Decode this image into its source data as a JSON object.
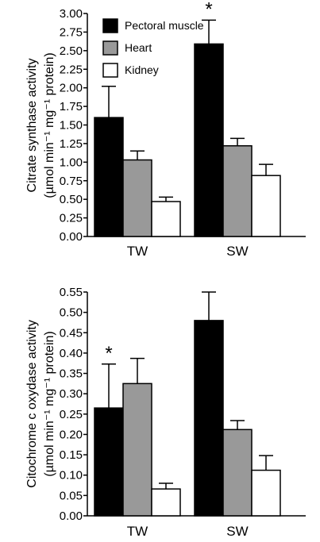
{
  "legend": [
    {
      "name": "Pectoral muscle",
      "color": "#000000"
    },
    {
      "name": "Heart",
      "color": "#999999"
    },
    {
      "name": "Kidney",
      "color": "#ffffff"
    }
  ],
  "chart_data": [
    {
      "type": "bar",
      "ylabel_line1": "Citrate synthase activity",
      "ylabel_line2": "(µmol min⁻¹ mg⁻¹ protein)",
      "categories": [
        "TW",
        "SW"
      ],
      "ylim": [
        0,
        3.0
      ],
      "yticks": [
        "0.00",
        "0.25",
        "0.50",
        "0.75",
        "1.00",
        "1.25",
        "1.50",
        "1.75",
        "2.00",
        "2.25",
        "2.50",
        "2.75",
        "3.00"
      ],
      "series": [
        {
          "name": "Pectoral muscle",
          "values": [
            1.6,
            2.59
          ],
          "errors": [
            0.42,
            0.32
          ]
        },
        {
          "name": "Heart",
          "values": [
            1.03,
            1.22
          ],
          "errors": [
            0.12,
            0.1
          ]
        },
        {
          "name": "Kidney",
          "values": [
            0.47,
            0.82
          ],
          "errors": [
            0.06,
            0.15
          ]
        }
      ],
      "annotations": [
        {
          "text": "*",
          "category": "SW",
          "series": "Pectoral muscle"
        }
      ],
      "legend_position": "top-left"
    },
    {
      "type": "bar",
      "ylabel_line1": "Citochrome c oxydase activity",
      "ylabel_line2": "(µmol min⁻¹ mg⁻¹ protein)",
      "categories": [
        "TW",
        "SW"
      ],
      "ylim": [
        0,
        0.55
      ],
      "yticks": [
        "0.00",
        "0.05",
        "0.10",
        "0.15",
        "0.20",
        "0.25",
        "0.30",
        "0.35",
        "0.40",
        "0.45",
        "0.50",
        "0.55"
      ],
      "series": [
        {
          "name": "Pectoral muscle",
          "values": [
            0.265,
            0.48
          ],
          "errors": [
            0.108,
            0.07
          ]
        },
        {
          "name": "Heart",
          "values": [
            0.325,
            0.212
          ],
          "errors": [
            0.062,
            0.022
          ]
        },
        {
          "name": "Kidney",
          "values": [
            0.066,
            0.112
          ],
          "errors": [
            0.014,
            0.036
          ]
        }
      ],
      "annotations": [
        {
          "text": "*",
          "category": "TW",
          "series": "Pectoral muscle"
        }
      ]
    }
  ]
}
